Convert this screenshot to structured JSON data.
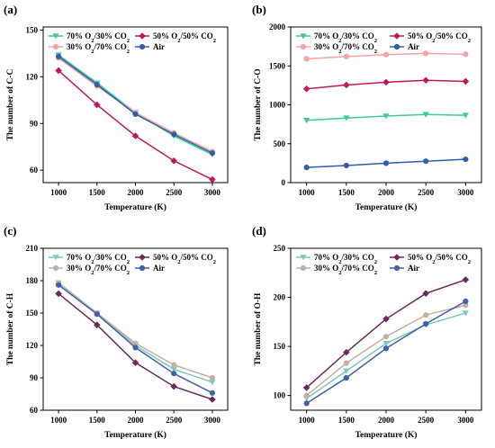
{
  "chart_data": [
    {
      "type": "line",
      "panel": "(a)",
      "title": "",
      "xlabel": "Temperature (K)",
      "ylabel": "The number of C-C",
      "x": [
        1000,
        1500,
        2000,
        2500,
        3000
      ],
      "xticks": [
        "1000",
        "1500",
        "2000",
        "2500",
        "3000"
      ],
      "yticks": [
        60,
        90,
        120,
        150
      ],
      "ylim": [
        52,
        152
      ],
      "series": [
        {
          "name": "70% O2/30% CO2",
          "color": "#3ec8a0",
          "marker": "triangle-down",
          "values": [
            134,
            116,
            97,
            82,
            70
          ]
        },
        {
          "name": "50% O2/50% CO2",
          "color": "#c0185a",
          "marker": "diamond",
          "values": [
            124,
            102,
            82,
            66,
            54
          ]
        },
        {
          "name": "30% O2/70% CO2",
          "color": "#f5a3a3",
          "marker": "circle",
          "values": [
            132,
            114,
            97,
            84,
            72
          ]
        },
        {
          "name": "Air",
          "color": "#2f5fa8",
          "marker": "circle",
          "values": [
            133,
            115,
            96,
            83,
            71
          ]
        }
      ]
    },
    {
      "type": "line",
      "panel": "(b)",
      "title": "",
      "xlabel": "Temperature (K)",
      "ylabel": "The number of C-O",
      "x": [
        1000,
        1500,
        2000,
        2500,
        3000
      ],
      "xticks": [
        "1000",
        "1500",
        "2000",
        "2500",
        "3000"
      ],
      "yticks": [
        0,
        500,
        1000,
        1500,
        2000
      ],
      "ylim": [
        0,
        2000
      ],
      "series": [
        {
          "name": "70% O2/30% CO2",
          "color": "#3ec8a0",
          "marker": "triangle-down",
          "values": [
            800,
            830,
            855,
            875,
            865
          ]
        },
        {
          "name": "50% O2/50% CO2",
          "color": "#c0185a",
          "marker": "diamond",
          "values": [
            1205,
            1255,
            1290,
            1315,
            1300
          ]
        },
        {
          "name": "30% O2/70% CO2",
          "color": "#f5a3a3",
          "marker": "circle",
          "values": [
            1590,
            1620,
            1645,
            1660,
            1650
          ]
        },
        {
          "name": "Air",
          "color": "#2f5fa8",
          "marker": "circle",
          "values": [
            195,
            220,
            250,
            275,
            300
          ]
        }
      ]
    },
    {
      "type": "line",
      "panel": "(c)",
      "title": "",
      "xlabel": "Temperature (K)",
      "ylabel": "The number of C-H",
      "x": [
        1000,
        1500,
        2000,
        2500,
        3000
      ],
      "xticks": [
        "1000",
        "1500",
        "2000",
        "2500",
        "3000"
      ],
      "yticks": [
        60,
        90,
        120,
        150,
        180,
        210
      ],
      "ylim": [
        60,
        210
      ],
      "series": [
        {
          "name": "70% O2/30% CO2",
          "color": "#7cc8c0",
          "marker": "triangle-down",
          "values": [
            178,
            150,
            120,
            98,
            86
          ]
        },
        {
          "name": "50% O2/50% CO2",
          "color": "#6b2a5a",
          "marker": "diamond",
          "values": [
            168,
            139,
            104,
            82,
            70
          ]
        },
        {
          "name": "30% O2/70% CO2",
          "color": "#c8b0a0",
          "marker": "circle",
          "values": [
            177,
            150,
            122,
            102,
            90
          ]
        },
        {
          "name": "Air",
          "color": "#4060a8",
          "marker": "circle",
          "values": [
            176,
            149,
            118,
            94,
            76
          ]
        }
      ]
    },
    {
      "type": "line",
      "panel": "(d)",
      "title": "",
      "xlabel": "Temperature (K)",
      "ylabel": "The number of O-H",
      "x": [
        1000,
        1500,
        2000,
        2500,
        3000
      ],
      "xticks": [
        "1000",
        "1500",
        "2000",
        "2500",
        "3000"
      ],
      "yticks": [
        100,
        150,
        200,
        250
      ],
      "ylim": [
        85,
        250
      ],
      "series": [
        {
          "name": "70% O2/30% CO2",
          "color": "#7cc8c0",
          "marker": "triangle-down",
          "values": [
            97,
            125,
            153,
            172,
            184
          ]
        },
        {
          "name": "50% O2/50% CO2",
          "color": "#6b2a5a",
          "marker": "diamond",
          "values": [
            108,
            144,
            178,
            204,
            218
          ]
        },
        {
          "name": "30% O2/70% CO2",
          "color": "#c8b0a0",
          "marker": "circle",
          "values": [
            100,
            133,
            160,
            182,
            192
          ]
        },
        {
          "name": "Air",
          "color": "#4060a8",
          "marker": "circle",
          "values": [
            92,
            118,
            148,
            173,
            196
          ]
        }
      ]
    }
  ]
}
